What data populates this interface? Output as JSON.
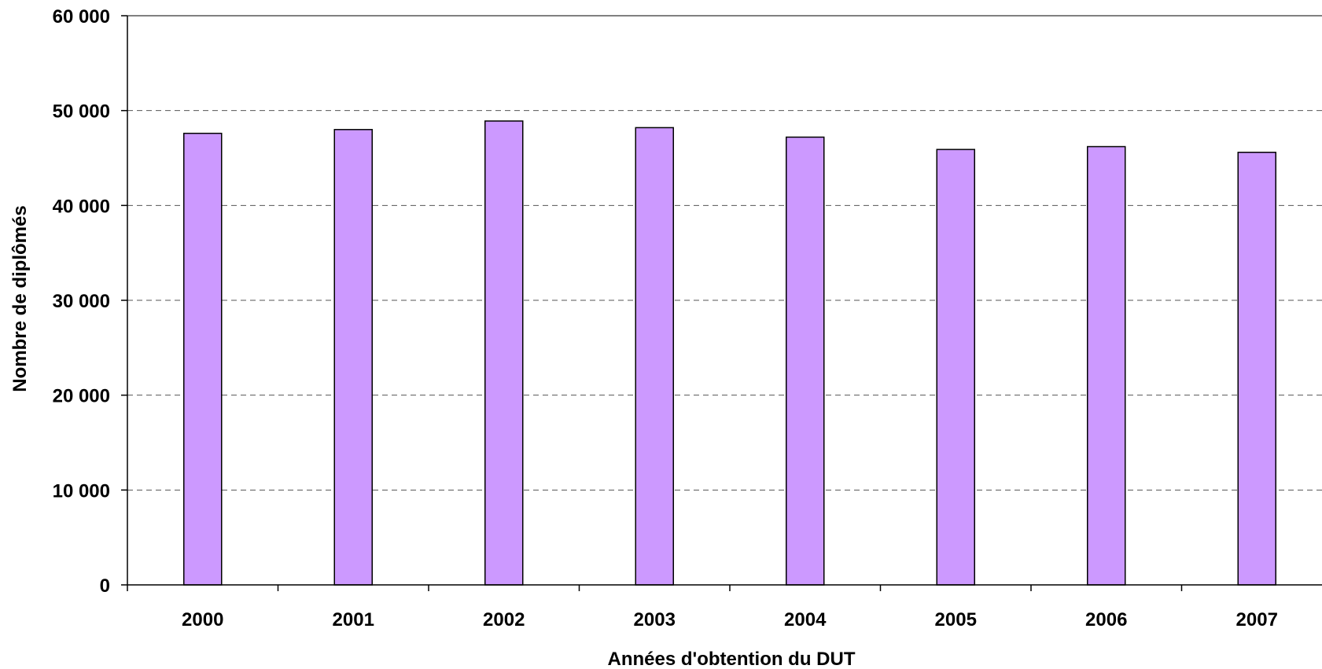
{
  "chart_data": {
    "type": "bar",
    "categories": [
      "2000",
      "2001",
      "2002",
      "2003",
      "2004",
      "2005",
      "2006",
      "2007"
    ],
    "values": [
      47600,
      48000,
      48900,
      48200,
      47200,
      45900,
      46200,
      45600
    ],
    "xlabel": "Années d'obtention du DUT",
    "ylabel": "Nombre de diplômés",
    "ylim": [
      0,
      60000
    ],
    "y_ticks": [
      0,
      10000,
      20000,
      30000,
      40000,
      50000,
      60000
    ],
    "y_tick_labels": [
      "0",
      "10 000",
      "20 000",
      "30 000",
      "40 000",
      "50 000",
      "60 000"
    ],
    "grid": "horizontal dashed",
    "bar_color": "#cc99ff",
    "bar_stroke": "#000000"
  }
}
